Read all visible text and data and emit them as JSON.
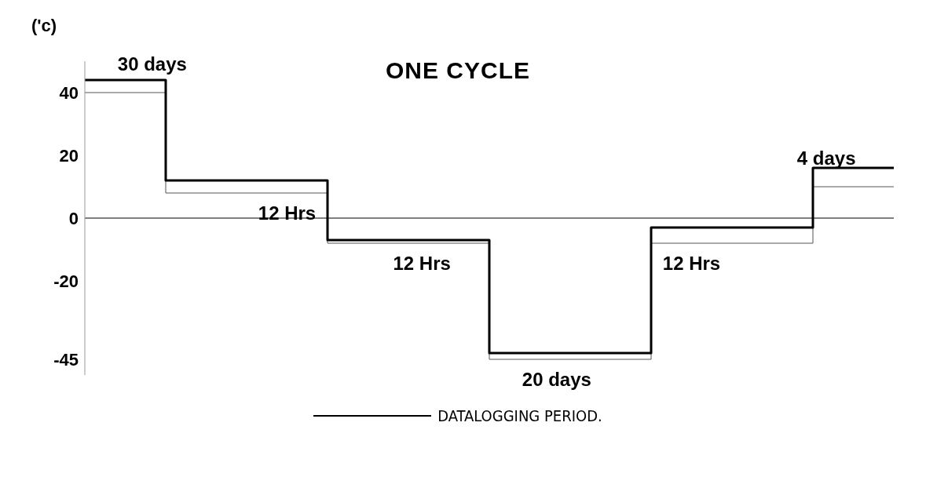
{
  "chart_data": {
    "type": "step",
    "title": "ONE CYCLE",
    "ylabel": "('c)",
    "categories": [
      null,
      null,
      null,
      null,
      null,
      null
    ],
    "series": [
      {
        "color": "#555555",
        "values": [
          40,
          8,
          -8,
          -45,
          -8,
          10
        ]
      },
      {
        "name": "DATALOGGING PERIOD.",
        "color": "#000000",
        "values": [
          44,
          12,
          -7,
          -43,
          -3,
          16
        ]
      }
    ],
    "ylim": [
      -50,
      50
    ],
    "yticks": [
      40,
      20,
      0,
      -20,
      -45
    ],
    "tick_labels": "y",
    "grid": false,
    "legend": "bottom",
    "ref_lines": [
      {
        "axis": "y",
        "value": 0
      }
    ],
    "annotations": [
      "30 days",
      "12 Hrs",
      "12 Hrs",
      "20 days",
      "12 Hrs",
      "4 days"
    ]
  }
}
